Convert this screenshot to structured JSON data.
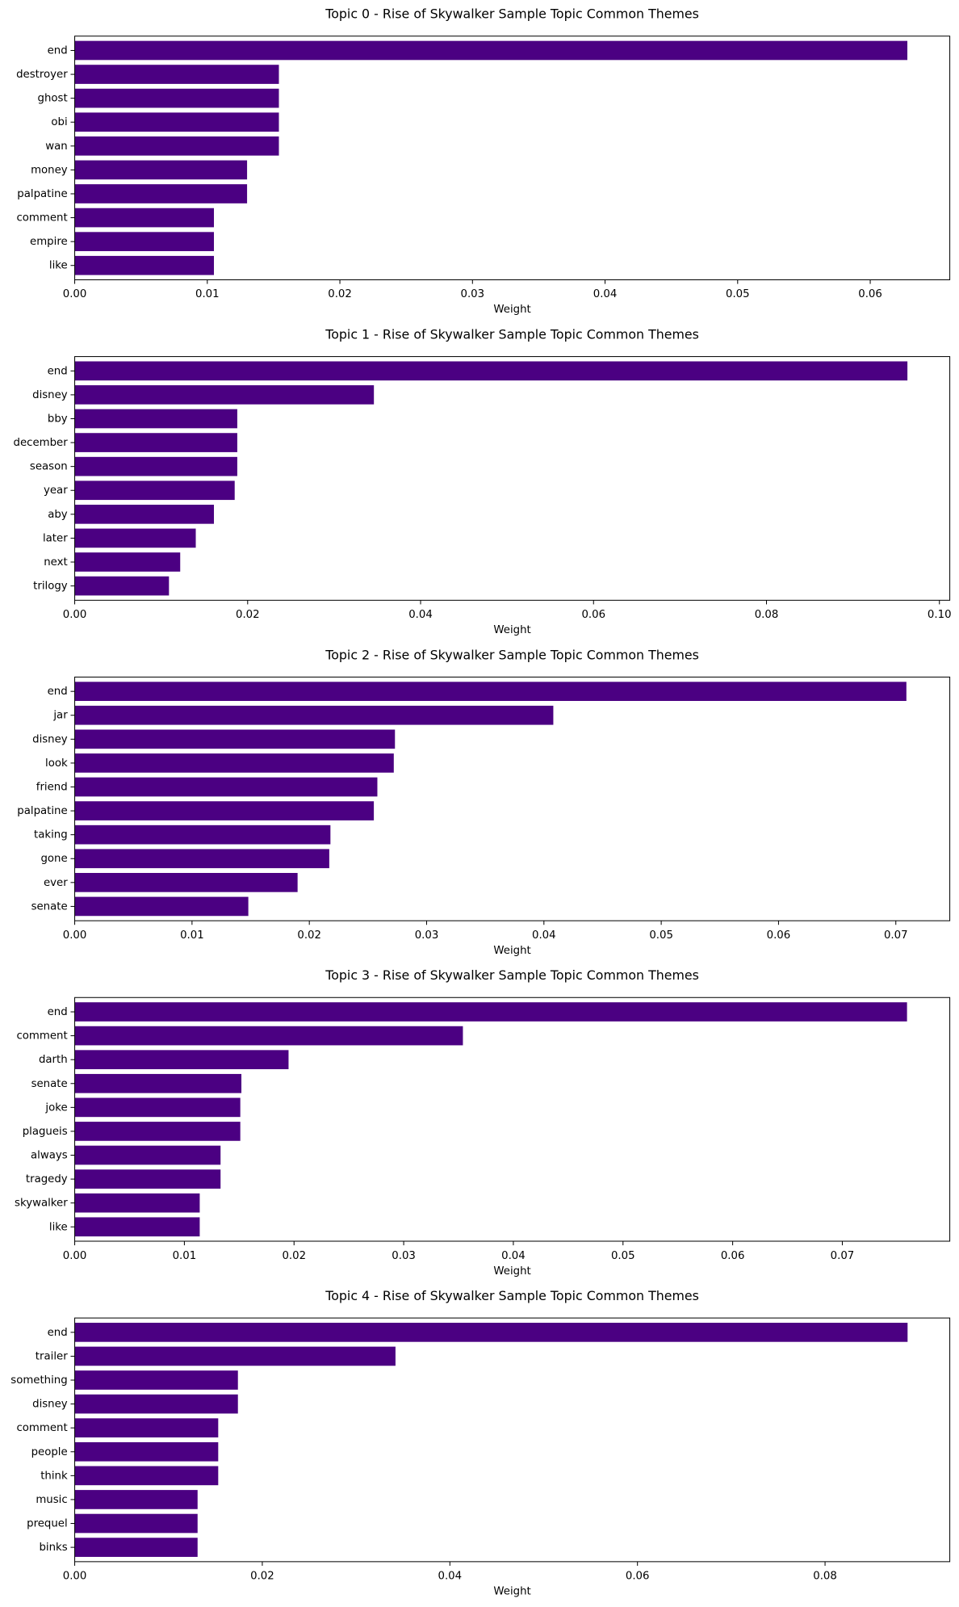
{
  "chart_data": [
    {
      "type": "bar",
      "orientation": "horizontal",
      "title": "Topic 0 - Rise of Skywalker Sample Topic Common Themes",
      "xlabel": "Weight",
      "color": "#4b0082",
      "categories": [
        "end",
        "destroyer",
        "ghost",
        "obi",
        "wan",
        "money",
        "palpatine",
        "comment",
        "empire",
        "like"
      ],
      "values": [
        0.0628,
        0.0154,
        0.0154,
        0.0154,
        0.0154,
        0.013,
        0.013,
        0.0105,
        0.0105,
        0.0105
      ],
      "xlim": [
        0,
        0.066
      ],
      "xticks": [
        {
          "value": 0,
          "label": "0.00"
        },
        {
          "value": 0.01,
          "label": "0.01"
        },
        {
          "value": 0.02,
          "label": "0.02"
        },
        {
          "value": 0.03,
          "label": "0.03"
        },
        {
          "value": 0.04,
          "label": "0.04"
        },
        {
          "value": 0.05,
          "label": "0.05"
        },
        {
          "value": 0.06,
          "label": "0.06"
        }
      ]
    },
    {
      "type": "bar",
      "orientation": "horizontal",
      "title": "Topic 1 - Rise of Skywalker Sample Topic Common Themes",
      "xlabel": "Weight",
      "color": "#4b0082",
      "categories": [
        "end",
        "disney",
        "bby",
        "december",
        "season",
        "year",
        "aby",
        "later",
        "next",
        "trilogy"
      ],
      "values": [
        0.0963,
        0.0346,
        0.0188,
        0.0188,
        0.0188,
        0.0185,
        0.0161,
        0.014,
        0.0122,
        0.0109
      ],
      "xlim": [
        0,
        0.1012
      ],
      "xticks": [
        {
          "value": 0,
          "label": "0.00"
        },
        {
          "value": 0.02,
          "label": "0.02"
        },
        {
          "value": 0.04,
          "label": "0.04"
        },
        {
          "value": 0.06,
          "label": "0.06"
        },
        {
          "value": 0.08,
          "label": "0.08"
        },
        {
          "value": 0.1,
          "label": "0.10"
        }
      ]
    },
    {
      "type": "bar",
      "orientation": "horizontal",
      "title": "Topic 2 - Rise of Skywalker Sample Topic Common Themes",
      "xlabel": "Weight",
      "color": "#4b0082",
      "categories": [
        "end",
        "jar",
        "disney",
        "look",
        "friend",
        "palpatine",
        "taking",
        "gone",
        "ever",
        "senate"
      ],
      "values": [
        0.0709,
        0.0408,
        0.0273,
        0.0272,
        0.0258,
        0.0255,
        0.0218,
        0.0217,
        0.019,
        0.0148
      ],
      "xlim": [
        0,
        0.0746
      ],
      "xticks": [
        {
          "value": 0,
          "label": "0.00"
        },
        {
          "value": 0.01,
          "label": "0.01"
        },
        {
          "value": 0.02,
          "label": "0.02"
        },
        {
          "value": 0.03,
          "label": "0.03"
        },
        {
          "value": 0.04,
          "label": "0.04"
        },
        {
          "value": 0.05,
          "label": "0.05"
        },
        {
          "value": 0.06,
          "label": "0.06"
        },
        {
          "value": 0.07,
          "label": "0.07"
        }
      ]
    },
    {
      "type": "bar",
      "orientation": "horizontal",
      "title": "Topic 3 - Rise of Skywalker Sample Topic Common Themes",
      "xlabel": "Weight",
      "color": "#4b0082",
      "categories": [
        "end",
        "comment",
        "darth",
        "senate",
        "joke",
        "plagueis",
        "always",
        "tragedy",
        "skywalker",
        "like"
      ],
      "values": [
        0.0759,
        0.0354,
        0.0195,
        0.0152,
        0.0151,
        0.0151,
        0.0133,
        0.0133,
        0.0114,
        0.0114
      ],
      "xlim": [
        0,
        0.0798
      ],
      "xticks": [
        {
          "value": 0,
          "label": "0.00"
        },
        {
          "value": 0.01,
          "label": "0.01"
        },
        {
          "value": 0.02,
          "label": "0.02"
        },
        {
          "value": 0.03,
          "label": "0.03"
        },
        {
          "value": 0.04,
          "label": "0.04"
        },
        {
          "value": 0.05,
          "label": "0.05"
        },
        {
          "value": 0.06,
          "label": "0.06"
        },
        {
          "value": 0.07,
          "label": "0.07"
        }
      ]
    },
    {
      "type": "bar",
      "orientation": "horizontal",
      "title": "Topic 4 - Rise of Skywalker Sample Topic Common Themes",
      "xlabel": "Weight",
      "color": "#4b0082",
      "categories": [
        "end",
        "trailer",
        "something",
        "disney",
        "comment",
        "people",
        "think",
        "music",
        "prequel",
        "binks"
      ],
      "values": [
        0.0888,
        0.0342,
        0.0174,
        0.0174,
        0.0153,
        0.0153,
        0.0153,
        0.0131,
        0.0131,
        0.0131
      ],
      "xlim": [
        0,
        0.0933
      ],
      "xticks": [
        {
          "value": 0,
          "label": "0.00"
        },
        {
          "value": 0.02,
          "label": "0.02"
        },
        {
          "value": 0.04,
          "label": "0.04"
        },
        {
          "value": 0.06,
          "label": "0.06"
        },
        {
          "value": 0.08,
          "label": "0.08"
        }
      ]
    }
  ]
}
